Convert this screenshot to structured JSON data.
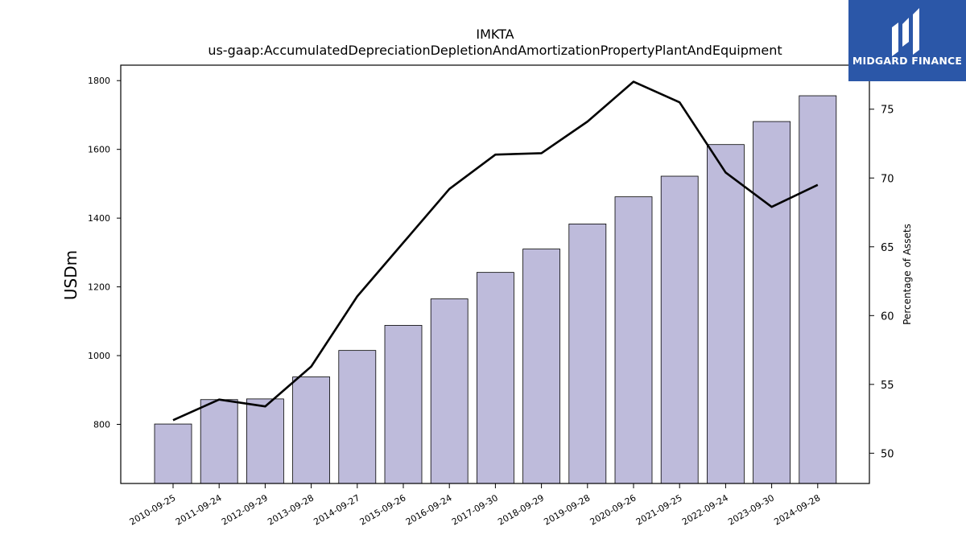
{
  "brand": {
    "name": "MIDGARD FINANCE",
    "color": "#2b57a8"
  },
  "chart_data": {
    "type": "bar",
    "title": "IMKTA",
    "subtitle": "us-gaap:AccumulatedDepreciationDepletionAndAmortizationPropertyPlantAndEquipment",
    "ylabel": "USDm",
    "y2label": "Percentage of Assets",
    "categories": [
      "2010-09-25",
      "2011-09-24",
      "2012-09-29",
      "2013-09-28",
      "2014-09-27",
      "2015-09-26",
      "2016-09-24",
      "2017-09-30",
      "2018-09-29",
      "2019-09-28",
      "2020-09-26",
      "2021-09-25",
      "2022-09-24",
      "2023-09-30",
      "2024-09-28"
    ],
    "series": [
      {
        "type": "bar",
        "axis": "left",
        "color": "#bebbdb",
        "values": [
          801,
          872,
          874,
          938,
          1015,
          1088,
          1165,
          1242,
          1310,
          1383,
          1462,
          1522,
          1614,
          1681,
          1756
        ]
      },
      {
        "type": "line",
        "axis": "right",
        "color": "#000000",
        "values": [
          52.4,
          53.9,
          53.4,
          56.3,
          61.4,
          65.3,
          69.2,
          71.7,
          71.8,
          74.1,
          77.0,
          75.5,
          70.4,
          67.9,
          69.5
        ]
      }
    ],
    "ylim": [
      628,
      1845
    ],
    "y2lim": [
      47.8,
      78.2
    ],
    "yticks": [
      800,
      1000,
      1200,
      1400,
      1600,
      1800
    ],
    "y2ticks": [
      50,
      55,
      60,
      65,
      70,
      75
    ],
    "grid": false,
    "legend": "none"
  }
}
